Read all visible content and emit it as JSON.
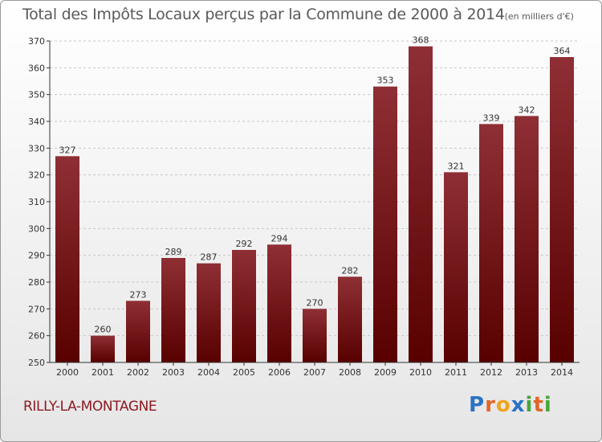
{
  "title": "Total des Impôts Locaux perçus par la Commune de 2000 à 2014",
  "title_unit": "(en milliers d'€)",
  "commune": "RILLY-LA-MONTAGNE",
  "logo": {
    "text": "Proxiti",
    "letters": [
      {
        "char": "P",
        "color": "#2a73c4"
      },
      {
        "char": "r",
        "color": "#e0672a"
      },
      {
        "char": "o",
        "color": "#f0a51e"
      },
      {
        "char": "x",
        "color": "#2a73c4"
      },
      {
        "char": "i",
        "color": "#49a63a"
      },
      {
        "char": "t",
        "color": "#e0672a"
      },
      {
        "char": "i",
        "color": "#49a63a"
      }
    ]
  },
  "colors": {
    "bar_top": "#8f2f35",
    "bar_bottom": "#580000",
    "grid": "#c8c8c8",
    "axis": "#333333"
  },
  "chart_data": {
    "type": "bar",
    "title": "Total des Impôts Locaux perçus par la Commune de 2000 à 2014 (en milliers d'€)",
    "xlabel": "",
    "ylabel": "",
    "categories": [
      "2000",
      "2001",
      "2002",
      "2003",
      "2004",
      "2005",
      "2006",
      "2007",
      "2008",
      "2009",
      "2010",
      "2011",
      "2012",
      "2013",
      "2014"
    ],
    "values": [
      327,
      260,
      273,
      289,
      287,
      292,
      294,
      270,
      282,
      353,
      368,
      321,
      339,
      342,
      364
    ],
    "ylim": [
      250,
      370
    ],
    "yticks": [
      250,
      260,
      270,
      280,
      290,
      300,
      310,
      320,
      330,
      340,
      350,
      360,
      370
    ],
    "grid": true,
    "data_labels": true
  }
}
